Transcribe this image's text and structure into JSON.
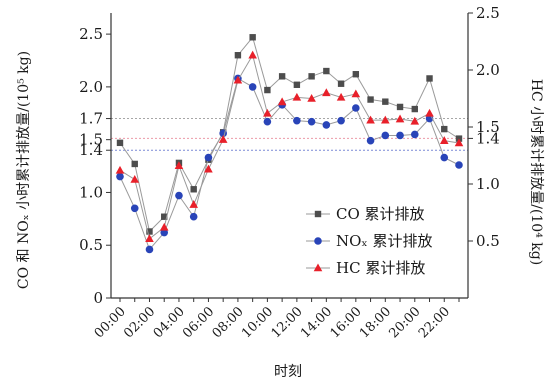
{
  "chart_data": {
    "type": "line",
    "xlabel": "时刻",
    "ylabel_left": "CO 和 NOₓ 小时累计排放量/(10⁵ kg)",
    "ylabel_right": "HC 小时累计排放量/(10⁴ kg)",
    "x_tick_labels": [
      "00:00",
      "02:00",
      "04:00",
      "06:00",
      "08:00",
      "10:00",
      "12:00",
      "14:00",
      "16:00",
      "18:00",
      "20:00",
      "22:00"
    ],
    "x": [
      "00:00",
      "01:00",
      "02:00",
      "03:00",
      "04:00",
      "05:00",
      "06:00",
      "07:00",
      "08:00",
      "09:00",
      "10:00",
      "11:00",
      "12:00",
      "13:00",
      "14:00",
      "15:00",
      "16:00",
      "17:00",
      "18:00",
      "19:00",
      "20:00",
      "21:00",
      "22:00",
      "23:00"
    ],
    "ylim_left": [
      0,
      2.7
    ],
    "ylim_right": [
      0,
      2.5
    ],
    "y_ticks_left": [
      0,
      0.5,
      1.0,
      1.4,
      1.5,
      1.7,
      2.0,
      2.5
    ],
    "y_tick_labels_left": [
      "0",
      "0.5",
      "1.0",
      "1.4",
      "1.5",
      "1.7",
      "2.0",
      "2.5"
    ],
    "y_ticks_right": [
      0.5,
      1.0,
      1.4,
      1.5,
      2.0,
      2.5
    ],
    "y_tick_labels_right": [
      "0.5",
      "1.0",
      "1.4",
      "1.5",
      "2.0",
      "2.5"
    ],
    "reference_lines": [
      {
        "axis": "left",
        "value": 1.7,
        "color": "#a6a6a6"
      },
      {
        "axis": "left",
        "value": 1.4,
        "color": "#7b8ad6"
      },
      {
        "axis": "right",
        "value": 1.4,
        "color": "#ec9aa7"
      }
    ],
    "series": [
      {
        "name": "CO 累计排放",
        "axis": "left",
        "marker": "square",
        "color": "#4d4d4d",
        "values": [
          1.47,
          1.27,
          0.63,
          0.77,
          1.28,
          1.03,
          1.31,
          1.57,
          2.3,
          2.47,
          1.97,
          2.1,
          2.02,
          2.1,
          2.15,
          2.03,
          2.12,
          1.88,
          1.86,
          1.81,
          1.79,
          2.08,
          1.6,
          1.51
        ]
      },
      {
        "name": "NOₓ 累计排放",
        "axis": "left",
        "marker": "circle",
        "color": "#2944b8",
        "values": [
          1.15,
          0.85,
          0.46,
          0.62,
          0.97,
          0.77,
          1.33,
          1.56,
          2.08,
          2.0,
          1.67,
          1.83,
          1.68,
          1.67,
          1.64,
          1.68,
          1.8,
          1.49,
          1.54,
          1.54,
          1.55,
          1.7,
          1.33,
          1.26
        ]
      },
      {
        "name": "HC 累计排放",
        "axis": "right",
        "marker": "triangle",
        "color": "#e8202a",
        "values": [
          1.12,
          1.04,
          0.52,
          0.62,
          1.16,
          0.82,
          1.13,
          1.39,
          1.91,
          2.13,
          1.62,
          1.72,
          1.76,
          1.75,
          1.8,
          1.76,
          1.79,
          1.56,
          1.56,
          1.57,
          1.55,
          1.62,
          1.38,
          1.36
        ]
      }
    ],
    "legend_position": "lower-right",
    "grid": false
  }
}
